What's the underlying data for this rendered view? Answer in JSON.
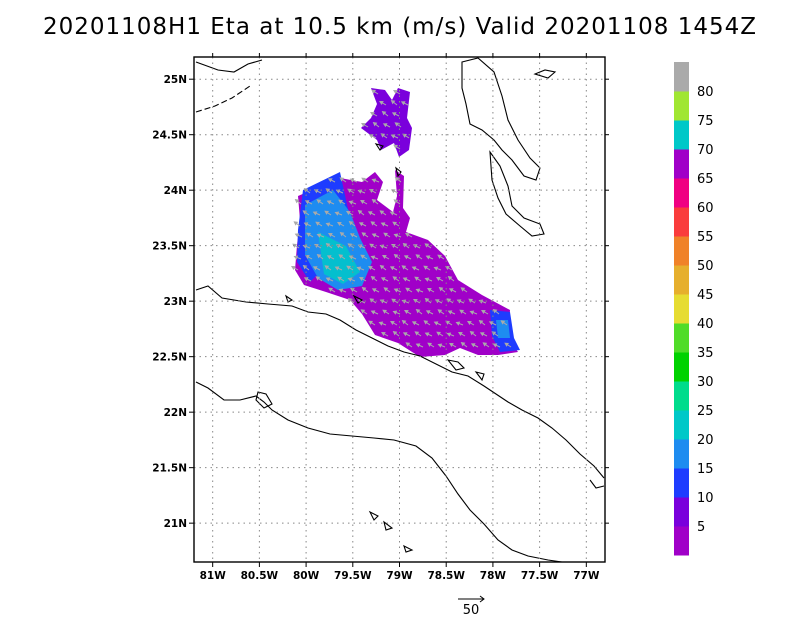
{
  "title": "20201108H1 Eta at 10.5 km (m/s) Valid 20201108 1454Z",
  "map": {
    "lon_range": [
      -81.2,
      -76.8
    ],
    "lat_range": [
      20.65,
      25.2
    ],
    "lon_ticks": [
      {
        "lon": -81,
        "label": "81W"
      },
      {
        "lon": -80.5,
        "label": "80.5W"
      },
      {
        "lon": -80,
        "label": "80W"
      },
      {
        "lon": -79.5,
        "label": "79.5W"
      },
      {
        "lon": -79,
        "label": "79W"
      },
      {
        "lon": -78.5,
        "label": "78.5W"
      },
      {
        "lon": -78,
        "label": "78W"
      },
      {
        "lon": -77.5,
        "label": "77.5W"
      },
      {
        "lon": -77,
        "label": "77W"
      }
    ],
    "lat_ticks": [
      {
        "lat": 25,
        "label": "25N"
      },
      {
        "lat": 24.5,
        "label": "24.5N"
      },
      {
        "lat": 24,
        "label": "24N"
      },
      {
        "lat": 23.5,
        "label": "23.5N"
      },
      {
        "lat": 23,
        "label": "23N"
      },
      {
        "lat": 22.5,
        "label": "22.5N"
      },
      {
        "lat": 22,
        "label": "22N"
      },
      {
        "lat": 21.5,
        "label": "21.5N"
      },
      {
        "lat": 21,
        "label": "21N"
      }
    ],
    "grid": "dotted"
  },
  "colorbar": {
    "labels": [
      "5",
      "10",
      "15",
      "20",
      "25",
      "30",
      "35",
      "40",
      "45",
      "50",
      "55",
      "60",
      "65",
      "70",
      "75",
      "80"
    ],
    "colors": [
      "#a000c8",
      "#7a00dc",
      "#1e3cff",
      "#1e8cf0",
      "#00c8c8",
      "#00dc8c",
      "#00d200",
      "#50dc28",
      "#e6dc32",
      "#e6af2d",
      "#f08228",
      "#fa3c3c",
      "#f00082",
      "#a000c8",
      "#00c8c8",
      "#a0e632",
      "#aaaaaa"
    ]
  },
  "vector_key": {
    "label": "50"
  },
  "colors": {
    "wind_purple": "#a000c8",
    "wind_violet": "#7a00dc",
    "wind_blue": "#1e3cff",
    "wind_sky": "#1e8cf0",
    "wind_cyan": "#00c8c8",
    "vector_arrow": "#aaaaaa",
    "coastline": "#000000"
  }
}
